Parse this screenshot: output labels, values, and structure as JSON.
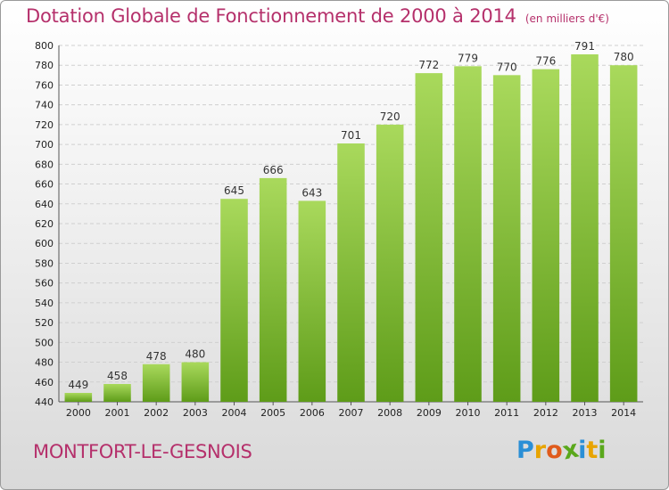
{
  "title": "Dotation Globale de Fonctionnement de 2000 à 2014",
  "subtitle": "(en milliers d'€)",
  "commune": "MONTFORT-LE-GESNOIS",
  "logo": {
    "letters": [
      "P",
      "r",
      "o",
      "x",
      "i",
      "t",
      "i"
    ],
    "colors": [
      "#2a8fd6",
      "#e8a400",
      "#e05b1c",
      "#5aa81c",
      "#2a8fd6",
      "#e8a400",
      "#5aa81c"
    ]
  },
  "colors": {
    "title": "#b5306b",
    "bar_light": "#a6d75a",
    "bar_dark": "#5f9e1a"
  },
  "chart_data": {
    "type": "bar",
    "categories": [
      "2000",
      "2001",
      "2002",
      "2003",
      "2004",
      "2005",
      "2006",
      "2007",
      "2008",
      "2009",
      "2010",
      "2011",
      "2012",
      "2013",
      "2014"
    ],
    "values": [
      449,
      458,
      478,
      480,
      645,
      666,
      643,
      701,
      720,
      772,
      779,
      770,
      776,
      791,
      780
    ],
    "title": "Dotation Globale de Fonctionnement de 2000 à 2014",
    "ylim": [
      440,
      800
    ],
    "yticks": [
      440,
      460,
      480,
      500,
      520,
      540,
      560,
      580,
      600,
      620,
      640,
      660,
      680,
      700,
      720,
      740,
      760,
      780,
      800
    ],
    "grid": true,
    "legend": "none"
  }
}
